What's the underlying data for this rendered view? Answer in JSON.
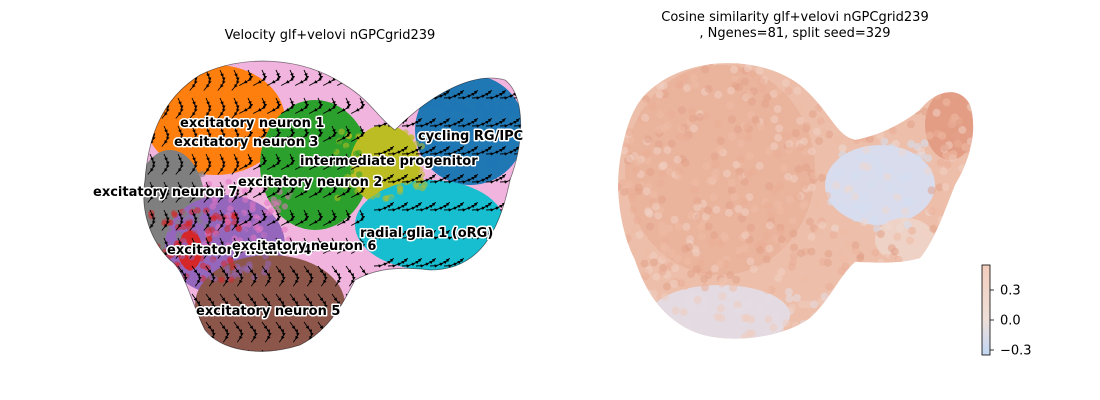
{
  "left_title": "Velocity glf+velovi nGPCgrid239",
  "right_title": "Cosine similarity glf+velovi nGPCgrid239\n, Ngenes=81, split seed=329",
  "chart_data": [
    {
      "type": "scatter",
      "subtype": "umap-velocity-stream",
      "title": "Velocity glf+velovi nGPCgrid239",
      "axes": "off",
      "clusters": [
        {
          "name": "excitatory neuron 1",
          "color": "#ff7f0e"
        },
        {
          "name": "excitatory neuron 3",
          "color": "#e377c2"
        },
        {
          "name": "intermediate progenitor",
          "color": "#bcbd22"
        },
        {
          "name": "cycling RG/IPC",
          "color": "#1f77b4"
        },
        {
          "name": "excitatory neuron 7",
          "color": "#7f7f7f"
        },
        {
          "name": "excitatory neuron 2",
          "color": "#2ca02c"
        },
        {
          "name": "radial glia 1 (oRG)",
          "color": "#17becf"
        },
        {
          "name": "excitatory neuron 4",
          "color": "#9467bd"
        },
        {
          "name": "excitatory neuron 6",
          "color": "#d62728"
        },
        {
          "name": "excitatory neuron 5",
          "color": "#8c564b"
        }
      ],
      "overlay": "velocity streamlines with arrowheads (black)"
    },
    {
      "type": "scatter",
      "subtype": "umap-colored-by-value",
      "title": "Cosine similarity glf+velovi nGPCgrid239\n, Ngenes=81, split seed=329",
      "axes": "off",
      "colormap": "coolwarm",
      "colorbar": {
        "ticks": [
          "0.3",
          "0.0",
          "−0.3"
        ],
        "range": [
          -0.35,
          0.55
        ]
      }
    }
  ]
}
